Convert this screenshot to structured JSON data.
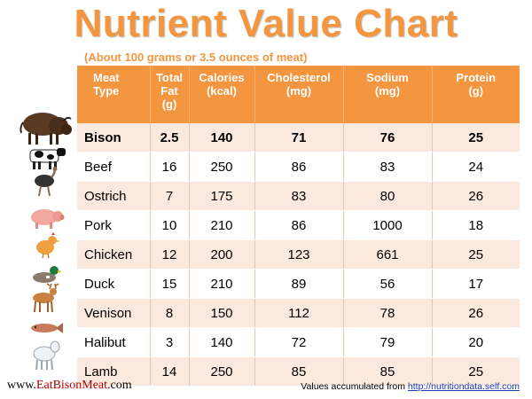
{
  "title": "Nutrient Value Chart",
  "subtitle": "(About 100 grams or 3.5 ounces of meat)",
  "headers": [
    [
      "Meat",
      "Type"
    ],
    [
      "Total",
      "Fat",
      "(g)"
    ],
    [
      "Calories",
      "(kcal)"
    ],
    [
      "Cholesterol",
      "(mg)"
    ],
    [
      "Sodium",
      "(mg)"
    ],
    [
      "Protein",
      "(g)"
    ]
  ],
  "rows": [
    {
      "meat": "Bison",
      "fat": "2.5",
      "calories": "140",
      "cholesterol": "71",
      "sodium": "76",
      "protein": "25",
      "icon": "bison-icon"
    },
    {
      "meat": "Beef",
      "fat": "16",
      "calories": "250",
      "cholesterol": "86",
      "sodium": "83",
      "protein": "24",
      "icon": "cow-icon"
    },
    {
      "meat": "Ostrich",
      "fat": "7",
      "calories": "175",
      "cholesterol": "83",
      "sodium": "80",
      "protein": "26",
      "icon": "ostrich-icon"
    },
    {
      "meat": "Pork",
      "fat": "10",
      "calories": "210",
      "cholesterol": "86",
      "sodium": "1000",
      "protein": "18",
      "icon": "pig-icon"
    },
    {
      "meat": "Chicken",
      "fat": "12",
      "calories": "200",
      "cholesterol": "123",
      "sodium": "661",
      "protein": "25",
      "icon": "chicken-icon"
    },
    {
      "meat": "Duck",
      "fat": "15",
      "calories": "210",
      "cholesterol": "89",
      "sodium": "56",
      "protein": "17",
      "icon": "duck-icon"
    },
    {
      "meat": "Venison",
      "fat": "8",
      "calories": "150",
      "cholesterol": "112",
      "sodium": "78",
      "protein": "26",
      "icon": "deer-icon"
    },
    {
      "meat": "Halibut",
      "fat": "3",
      "calories": "140",
      "cholesterol": "72",
      "sodium": "79",
      "protein": "20",
      "icon": "fish-icon"
    },
    {
      "meat": "Lamb",
      "fat": "14",
      "calories": "250",
      "cholesterol": "85",
      "sodium": "85",
      "protein": "25",
      "icon": "lamb-icon"
    }
  ],
  "footer": {
    "site_prefix": "www.",
    "site_brand": "EatBisonMeat",
    "site_suffix": ".com",
    "source_text": "Values accumulated from ",
    "source_link": "http://nutritiondata.self.com"
  },
  "colors": {
    "accent": "#f4953f",
    "row_alt": "#fce9dd",
    "brand_red": "#b40000",
    "link": "#1c3cb4"
  }
}
